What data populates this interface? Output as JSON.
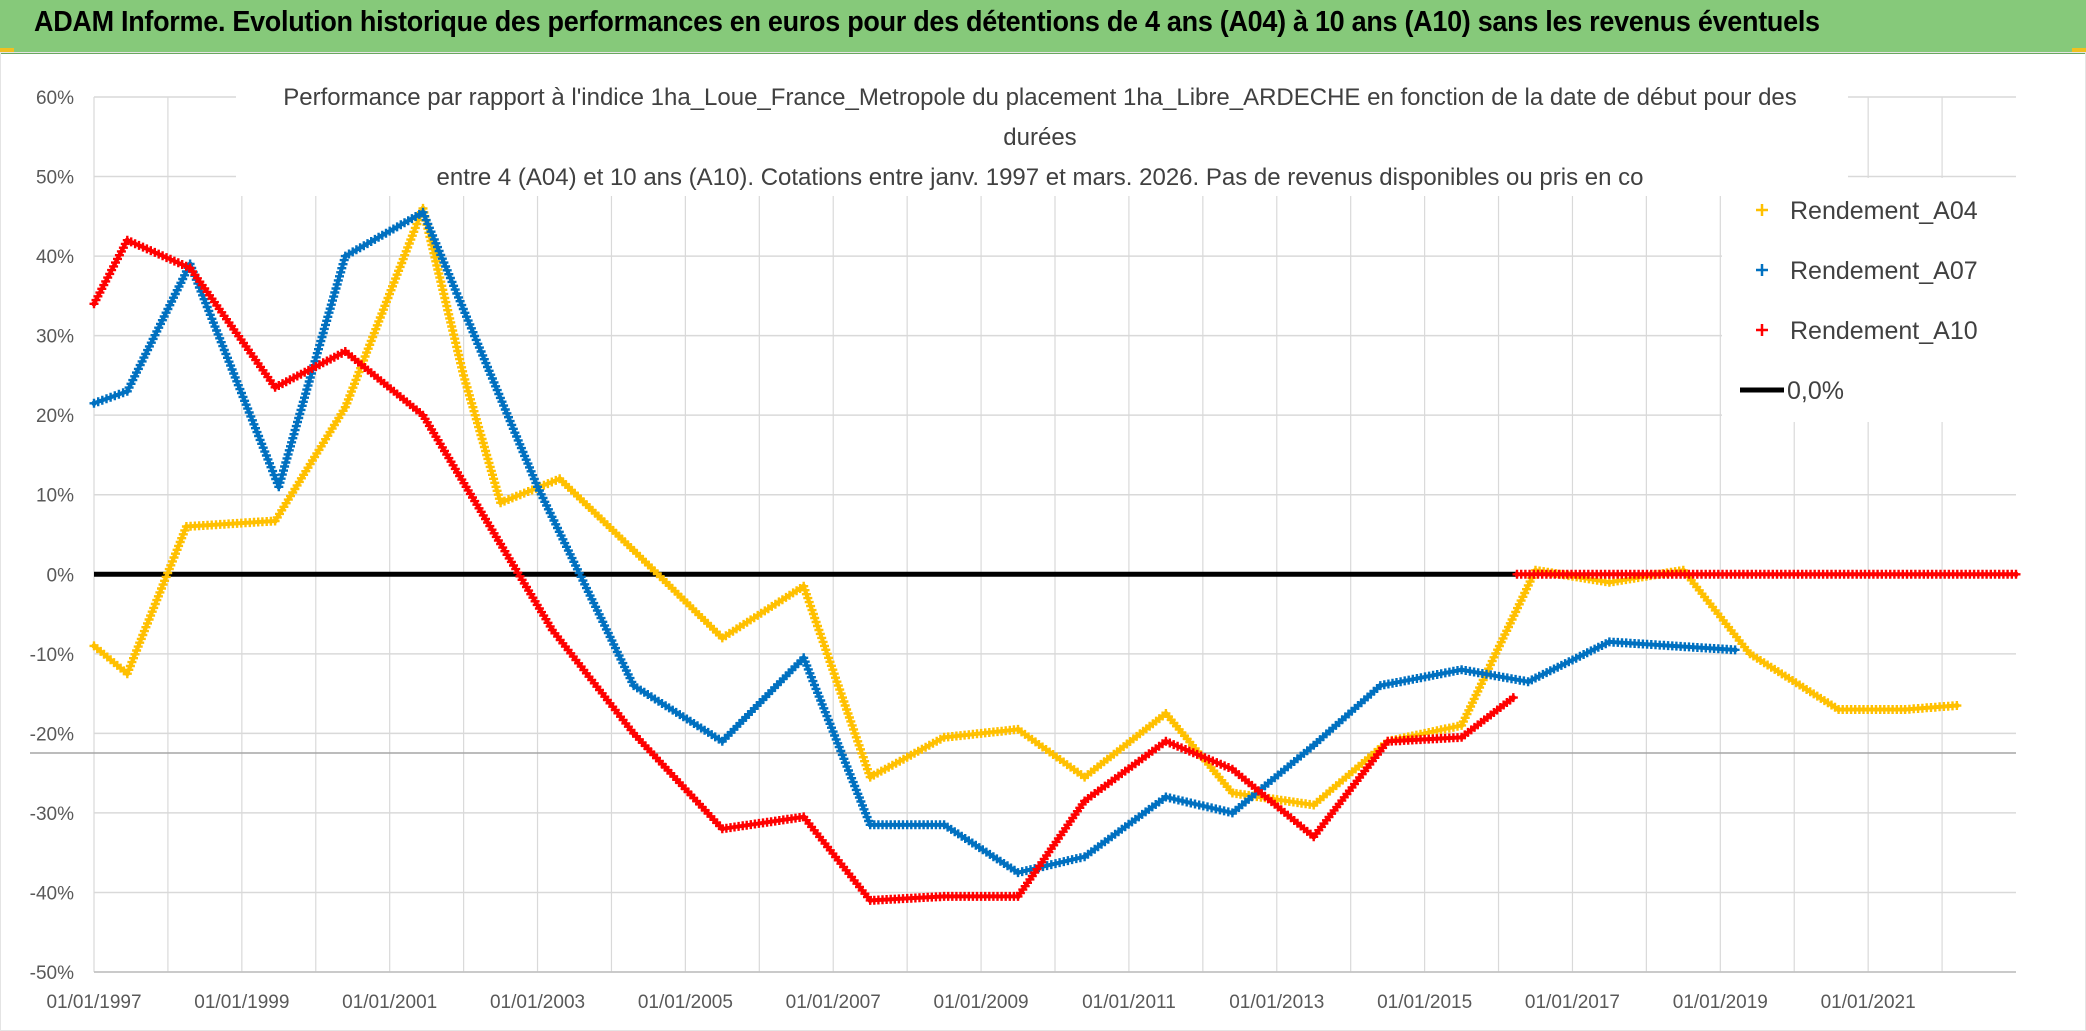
{
  "banner": {
    "text": "ADAM Informe. Evolution historique des performances en euros pour des détentions de 4 ans (A04) à 10 ans (A10) sans les revenus éventuels"
  },
  "colors": {
    "banner_bg": "#86c97a",
    "A04": "#ffc000",
    "A07": "#0070c0",
    "A10": "#ff0000",
    "zero": "#000000",
    "grid": "#d9d9d9",
    "axis_text": "#595959"
  },
  "chart_data": {
    "type": "line",
    "title_lines": [
      "Performance par rapport à l'indice 1ha_Loue_France_Metropole  du placement 1ha_Libre_ARDECHE en fonction de la date de début pour des",
      "durées",
      "entre 4 (A04) et 10 ans (A10). Cotations entre janv. 1997 et mars. 2026. Pas de revenus disponibles ou pris en co"
    ],
    "xlabel": "",
    "ylabel": "",
    "xlim": [
      1997.0,
      2023.0
    ],
    "ylim": [
      -50,
      60
    ],
    "y_ticks": [
      {
        "value": 60,
        "label": "60%"
      },
      {
        "value": 50,
        "label": "50%"
      },
      {
        "value": 40,
        "label": "40%"
      },
      {
        "value": 30,
        "label": "30%"
      },
      {
        "value": 20,
        "label": "20%"
      },
      {
        "value": 10,
        "label": "10%"
      },
      {
        "value": 0,
        "label": "0%"
      },
      {
        "value": -10,
        "label": "-10%"
      },
      {
        "value": -20,
        "label": "-20%"
      },
      {
        "value": -30,
        "label": "-30%"
      },
      {
        "value": -40,
        "label": "-40%"
      },
      {
        "value": -50,
        "label": "-50%"
      }
    ],
    "x_ticks": [
      {
        "value": 1997.0,
        "label": "01/01/1997"
      },
      {
        "value": 1999.0,
        "label": "01/01/1999"
      },
      {
        "value": 2001.0,
        "label": "01/01/2001"
      },
      {
        "value": 2003.0,
        "label": "01/01/2003"
      },
      {
        "value": 2005.0,
        "label": "01/01/2005"
      },
      {
        "value": 2007.0,
        "label": "01/01/2007"
      },
      {
        "value": 2009.0,
        "label": "01/01/2009"
      },
      {
        "value": 2011.0,
        "label": "01/01/2011"
      },
      {
        "value": 2013.0,
        "label": "01/01/2013"
      },
      {
        "value": 2015.0,
        "label": "01/01/2015"
      },
      {
        "value": 2017.0,
        "label": "01/01/2017"
      },
      {
        "value": 2019.0,
        "label": "01/01/2019"
      },
      {
        "value": 2021.0,
        "label": "01/01/2021"
      }
    ],
    "x_minor_grid": [
      1998,
      2000,
      2002,
      2004,
      2006,
      2008,
      2010,
      2012,
      2014,
      2016,
      2018,
      2020,
      2022
    ],
    "legend_position": "top-right",
    "series": [
      {
        "name": "Rendement_A04",
        "color_key": "A04",
        "style": "markers",
        "points": [
          [
            1997.0,
            -9
          ],
          [
            1997.45,
            -12.5
          ],
          [
            1998.25,
            6
          ],
          [
            1999.45,
            6.7
          ],
          [
            2000.4,
            21
          ],
          [
            2001.45,
            46
          ],
          [
            2002.0,
            25
          ],
          [
            2002.5,
            9
          ],
          [
            2003.3,
            12
          ],
          [
            2004.3,
            3
          ],
          [
            2005.5,
            -8
          ],
          [
            2006.6,
            -1.5
          ],
          [
            2007.5,
            -25.5
          ],
          [
            2008.5,
            -20.5
          ],
          [
            2009.5,
            -19.5
          ],
          [
            2010.4,
            -25.5
          ],
          [
            2011.5,
            -17.5
          ],
          [
            2012.4,
            -27.5
          ],
          [
            2013.5,
            -29
          ],
          [
            2014.5,
            -21
          ],
          [
            2015.5,
            -19
          ],
          [
            2016.5,
            0.5
          ],
          [
            2017.5,
            -1
          ],
          [
            2018.5,
            0.5
          ],
          [
            2019.4,
            -10
          ],
          [
            2020.6,
            -17
          ],
          [
            2021.5,
            -17
          ],
          [
            2022.2,
            -16.5
          ]
        ]
      },
      {
        "name": "Rendement_A07",
        "color_key": "A07",
        "style": "markers",
        "points": [
          [
            1997.0,
            21.5
          ],
          [
            1997.45,
            23
          ],
          [
            1998.3,
            39
          ],
          [
            1999.5,
            11
          ],
          [
            2000.4,
            40
          ],
          [
            2001.45,
            45.5
          ],
          [
            2003.0,
            11
          ],
          [
            2004.3,
            -14
          ],
          [
            2005.5,
            -21
          ],
          [
            2006.6,
            -10.5
          ],
          [
            2007.5,
            -31.5
          ],
          [
            2008.5,
            -31.5
          ],
          [
            2009.5,
            -37.5
          ],
          [
            2010.4,
            -35.5
          ],
          [
            2011.5,
            -28
          ],
          [
            2012.4,
            -30
          ],
          [
            2013.5,
            -21.5
          ],
          [
            2014.4,
            -14
          ],
          [
            2015.5,
            -12
          ],
          [
            2016.4,
            -13.5
          ],
          [
            2017.5,
            -8.5
          ],
          [
            2019.2,
            -9.5
          ]
        ]
      },
      {
        "name": "Rendement_A10",
        "color_key": "A10",
        "style": "markers",
        "points": [
          [
            1997.0,
            34
          ],
          [
            1997.45,
            42
          ],
          [
            1998.3,
            38.5
          ],
          [
            1999.45,
            23.5
          ],
          [
            2000.4,
            28
          ],
          [
            2001.45,
            20
          ],
          [
            2003.2,
            -7
          ],
          [
            2004.3,
            -20
          ],
          [
            2005.5,
            -32
          ],
          [
            2006.6,
            -30.5
          ],
          [
            2007.5,
            -41
          ],
          [
            2008.5,
            -40.5
          ],
          [
            2009.5,
            -40.5
          ],
          [
            2010.4,
            -28.5
          ],
          [
            2011.5,
            -21
          ],
          [
            2012.4,
            -24.5
          ],
          [
            2013.5,
            -33
          ],
          [
            2014.5,
            -21
          ],
          [
            2015.5,
            -20.5
          ],
          [
            2016.2,
            -15.5
          ]
        ]
      },
      {
        "name": "Rendement_A10",
        "color_key": "A10",
        "style": "markers",
        "points": [
          [
            2016.25,
            0
          ],
          [
            2023.0,
            0
          ]
        ]
      },
      {
        "name": "0,0%",
        "color_key": "zero",
        "style": "line",
        "points": [
          [
            1997.0,
            0
          ],
          [
            2016.25,
            0
          ]
        ]
      }
    ],
    "legend": [
      {
        "label": "Rendement_A04",
        "color_key": "A04",
        "style": "marker"
      },
      {
        "label": "Rendement_A07",
        "color_key": "A07",
        "style": "marker"
      },
      {
        "label": "Rendement_A10",
        "color_key": "A10",
        "style": "marker"
      },
      {
        "label": "0,0%",
        "color_key": "zero",
        "style": "line"
      }
    ]
  }
}
